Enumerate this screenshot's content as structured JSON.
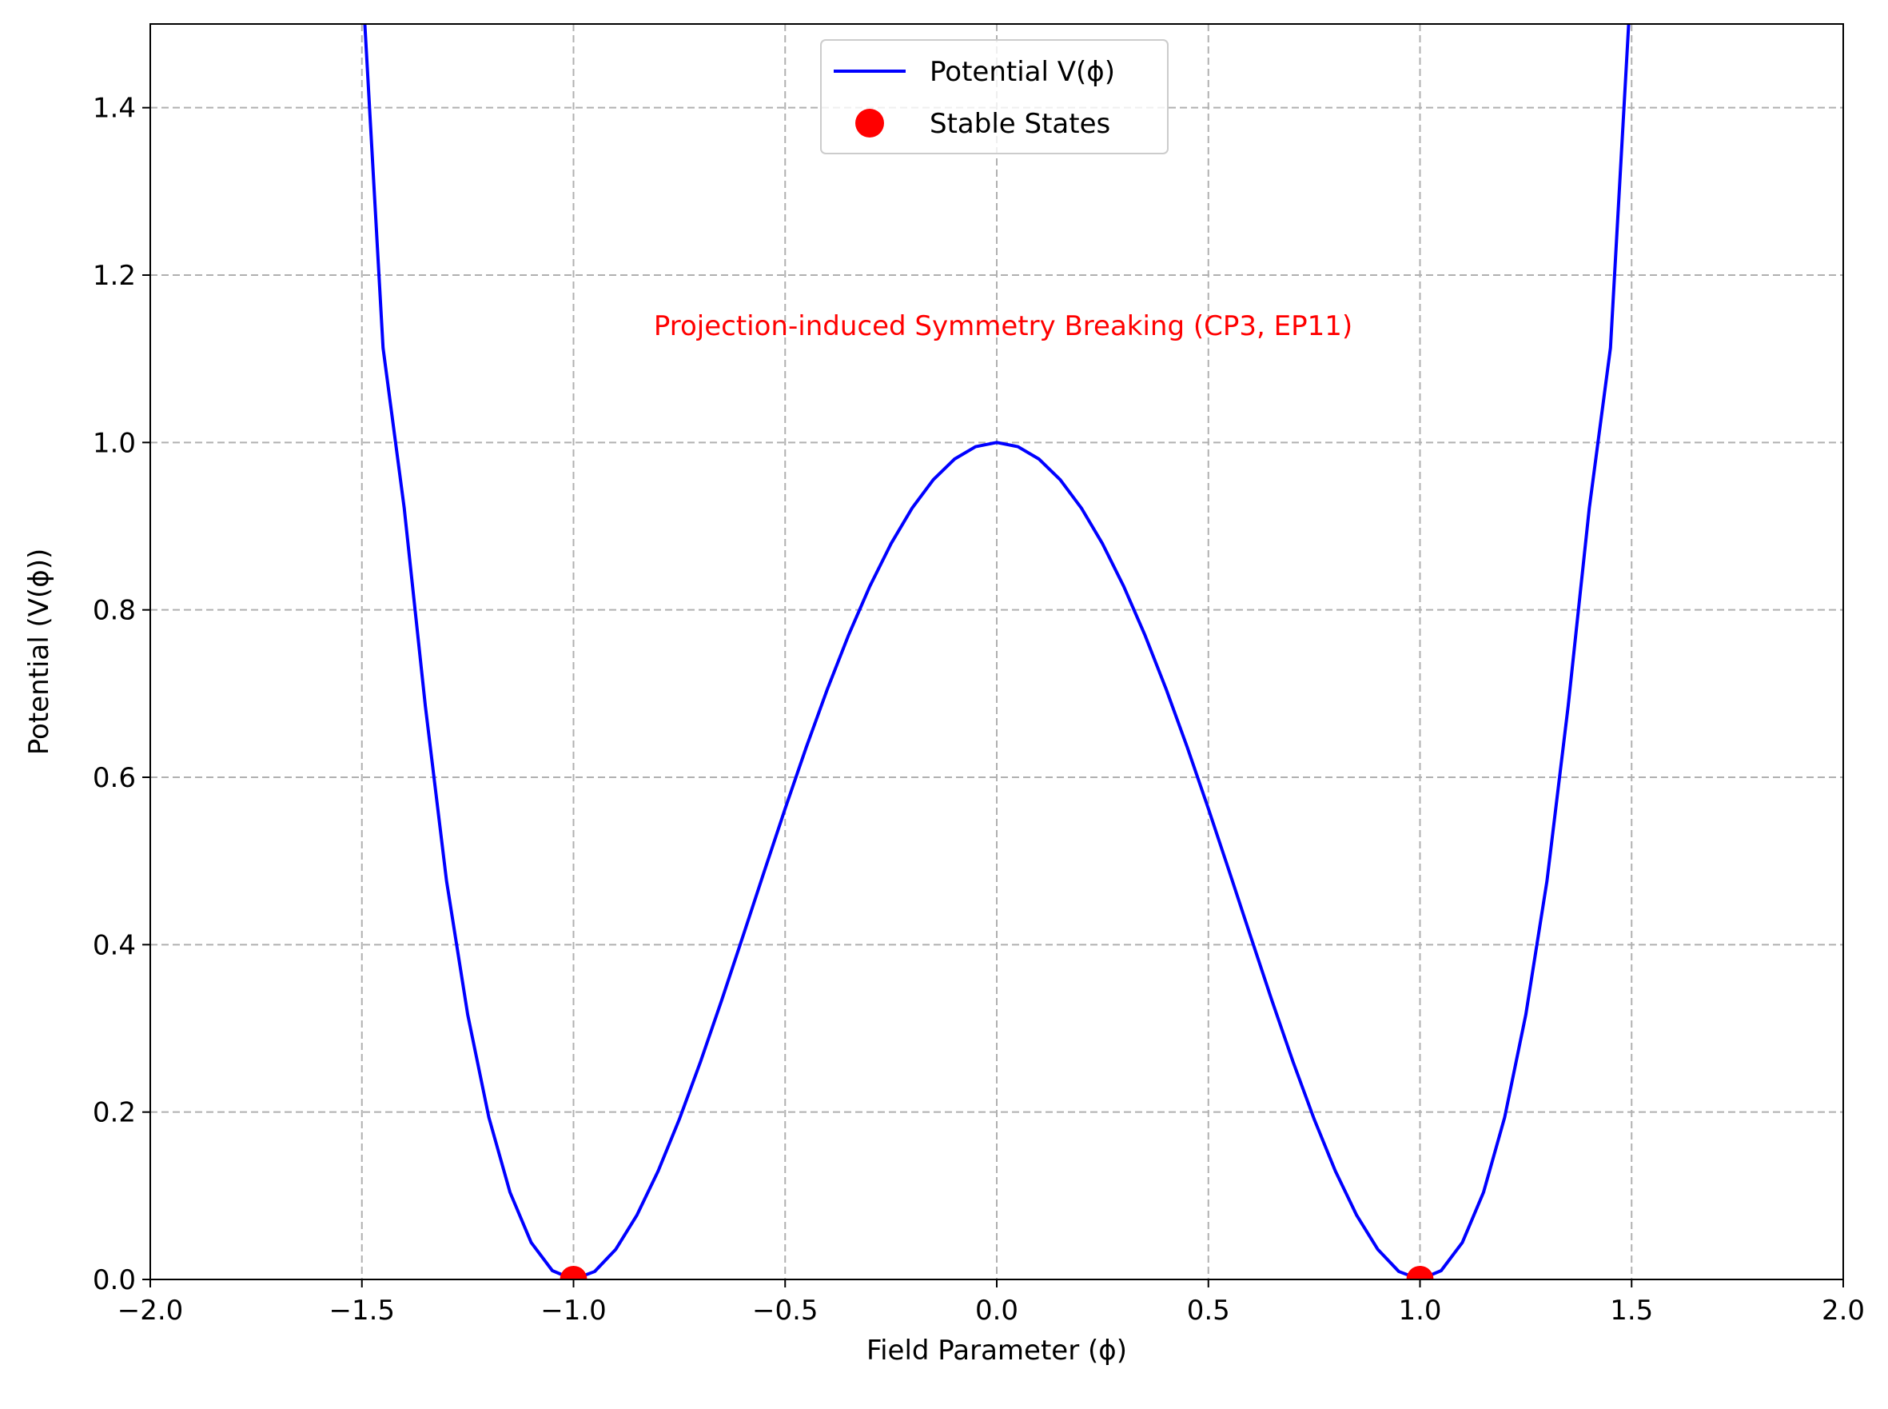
{
  "chart_data": {
    "type": "line",
    "title": "",
    "xlabel": "Field Parameter (ϕ)",
    "ylabel": "Potential (V(ϕ))",
    "xlim": [
      -2.0,
      2.0
    ],
    "ylim": [
      0.0,
      1.5
    ],
    "xticks": [
      -2.0,
      -1.5,
      -1.0,
      -0.5,
      0.0,
      0.5,
      1.0,
      1.5,
      2.0
    ],
    "xtick_labels": [
      "−2.0",
      "−1.5",
      "−1.0",
      "−0.5",
      "0.0",
      "0.5",
      "1.0",
      "1.5",
      "2.0"
    ],
    "yticks": [
      0.0,
      0.2,
      0.4,
      0.6,
      0.8,
      1.0,
      1.2,
      1.4
    ],
    "ytick_labels": [
      "0.0",
      "0.2",
      "0.4",
      "0.6",
      "0.8",
      "1.0",
      "1.2",
      "1.4"
    ],
    "grid": true,
    "legend_position": "upper center",
    "series": [
      {
        "name": "Potential V(ϕ)",
        "kind": "line",
        "color": "#0000ff",
        "x": [
          -1.5,
          -1.45,
          -1.4,
          -1.35,
          -1.3,
          -1.25,
          -1.2,
          -1.15,
          -1.1,
          -1.05,
          -1.0,
          -0.95,
          -0.9,
          -0.85,
          -0.8,
          -0.75,
          -0.7,
          -0.65,
          -0.6,
          -0.55,
          -0.5,
          -0.45,
          -0.4,
          -0.35,
          -0.3,
          -0.25,
          -0.2,
          -0.15,
          -0.1,
          -0.05,
          0.0,
          0.05,
          0.1,
          0.15,
          0.2,
          0.25,
          0.3,
          0.35,
          0.4,
          0.45,
          0.5,
          0.55,
          0.6,
          0.65,
          0.7,
          0.75,
          0.8,
          0.85,
          0.9,
          0.95,
          1.0,
          1.05,
          1.1,
          1.15,
          1.2,
          1.25,
          1.3,
          1.35,
          1.4,
          1.45,
          1.5
        ],
        "y": [
          1.5625,
          1.113,
          0.9216,
          0.6848,
          0.4761,
          0.3164,
          0.1936,
          0.104,
          0.0441,
          0.0105,
          0.0,
          0.0095,
          0.0361,
          0.077,
          0.1296,
          0.1914,
          0.2601,
          0.3335,
          0.4096,
          0.4865,
          0.5625,
          0.636,
          0.7056,
          0.77,
          0.8281,
          0.8789,
          0.9216,
          0.9555,
          0.9801,
          0.995,
          1.0,
          0.995,
          0.9801,
          0.9555,
          0.9216,
          0.8789,
          0.8281,
          0.77,
          0.7056,
          0.636,
          0.5625,
          0.4865,
          0.4096,
          0.3335,
          0.2601,
          0.1914,
          0.1296,
          0.077,
          0.0361,
          0.0095,
          0.0,
          0.0105,
          0.0441,
          0.104,
          0.1936,
          0.3164,
          0.4761,
          0.6848,
          0.9216,
          1.113,
          1.5625
        ]
      },
      {
        "name": "Stable States",
        "kind": "scatter",
        "color": "#ff0000",
        "x": [
          -1.0,
          1.0
        ],
        "y": [
          0.0,
          0.0
        ]
      }
    ],
    "annotations": [
      {
        "text": "Projection-induced Symmetry Breaking (CP3, EP11)",
        "x": 0.0,
        "y": 1.14,
        "color": "#ff0000"
      }
    ]
  }
}
